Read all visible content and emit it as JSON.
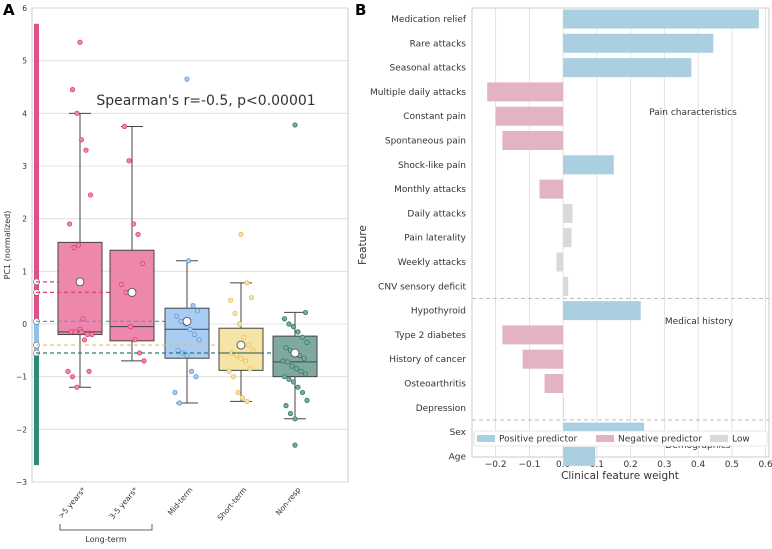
{
  "chart_data": [
    {
      "panel_label": "A",
      "type": "box",
      "ylabel": "PC1 (normalized)",
      "ylim": [
        -3,
        6
      ],
      "yticks": [
        -3,
        -2,
        -1,
        0,
        1,
        2,
        3,
        4,
        5,
        6
      ],
      "annotation": "Spearman's r=-0.5, p<0.00001",
      "group_label": "Long-term",
      "groups": [
        {
          "name": ">5 years*",
          "color": "#ee87ac",
          "stroke": "#d9436f",
          "q1": -0.2,
          "median": -0.15,
          "q3": 1.55,
          "whisker_low": -1.2,
          "whisker_high": 4.0,
          "mean": 0.8,
          "outliers": [
            5.35
          ],
          "points": [
            5.35,
            4.45,
            4.0,
            3.5,
            3.3,
            2.45,
            1.9,
            1.45,
            1.5,
            0.1,
            -0.2,
            -0.2,
            -0.15,
            -0.15,
            -0.1,
            -0.3,
            -0.9,
            -0.9,
            -1.0,
            -1.2,
            -0.15
          ]
        },
        {
          "name": "3-5 years*",
          "color": "#ee87ac",
          "stroke": "#d9436f",
          "q1": -0.32,
          "median": -0.05,
          "q3": 1.4,
          "whisker_low": -0.7,
          "whisker_high": 3.75,
          "mean": 0.6,
          "outliers": [],
          "points": [
            3.75,
            3.1,
            1.9,
            1.7,
            1.15,
            0.75,
            0.6,
            -0.05,
            -0.3,
            -0.55,
            -0.7
          ]
        },
        {
          "name": "Mid-term",
          "color": "#a9cdf2",
          "stroke": "#5b9bd5",
          "q1": -0.65,
          "median": -0.1,
          "q3": 0.3,
          "whisker_low": -1.5,
          "whisker_high": 1.2,
          "mean": 0.05,
          "outliers": [
            4.65
          ],
          "points": [
            4.65,
            1.2,
            0.35,
            0.25,
            0.15,
            0.05,
            0.0,
            -0.1,
            -0.2,
            -0.3,
            -0.5,
            -0.55,
            -0.6,
            -0.9,
            -1.0,
            -1.3,
            -1.5
          ]
        },
        {
          "name": "Short-term",
          "color": "#f6e4a6",
          "stroke": "#e2c15d",
          "q1": -0.88,
          "median": -0.55,
          "q3": -0.08,
          "whisker_low": -1.47,
          "whisker_high": 0.78,
          "mean": -0.4,
          "outliers": [
            1.7
          ],
          "points": [
            1.7,
            0.78,
            0.5,
            0.45,
            0.2,
            0.0,
            -0.25,
            -0.4,
            -0.5,
            -0.55,
            -0.6,
            -0.65,
            -0.7,
            -0.85,
            -0.9,
            -1.0,
            -1.3,
            -1.4,
            -1.47
          ]
        },
        {
          "name": "Non-resp",
          "color": "#7fa89f",
          "stroke": "#2e7d6b",
          "q1": -1.0,
          "median": -0.72,
          "q3": -0.23,
          "whisker_low": -1.8,
          "whisker_high": 0.22,
          "mean": -0.55,
          "outliers": [
            3.78,
            -2.3
          ],
          "points": [
            3.78,
            0.22,
            0.1,
            0.0,
            -0.05,
            -0.15,
            -0.25,
            -0.35,
            -0.45,
            -0.5,
            -0.55,
            -0.6,
            -0.65,
            -0.7,
            -0.72,
            -0.8,
            -0.85,
            -0.9,
            -0.95,
            -1.0,
            -1.05,
            -1.1,
            -1.2,
            -1.3,
            -1.45,
            -1.55,
            -1.7,
            -1.8,
            -2.3
          ]
        }
      ],
      "reference_bar": [
        {
          "from": 5.7,
          "to": 0.0,
          "color": "#e0508a"
        },
        {
          "from": 0.0,
          "to": -0.5,
          "color": "#8ec2ec"
        },
        {
          "from": -0.5,
          "to": -0.6,
          "color": "#f0d47a"
        },
        {
          "from": -0.6,
          "to": -2.68,
          "color": "#2e8b78"
        }
      ],
      "reference_markers": [
        0.8,
        0.6,
        0.05,
        -0.4,
        -0.55
      ]
    },
    {
      "panel_label": "B",
      "type": "bar",
      "orientation": "horizontal",
      "xlabel": "Clinical feature weight",
      "ylabel": "Feature",
      "xlim": [
        -0.27,
        0.61
      ],
      "xticks": [
        -0.2,
        -0.1,
        0.0,
        0.1,
        0.2,
        0.3,
        0.4,
        0.5,
        0.6
      ],
      "categories": [
        "Medication relief",
        "Rare attacks",
        "Seasonal attacks",
        "Multiple daily attacks",
        "Constant pain",
        "Spontaneous pain",
        "Shock-like pain",
        "Monthly attacks",
        "Daily attacks",
        "Pain laterality",
        "Weekly attacks",
        "CNV sensory deficit",
        "Hypothyroid",
        "Type 2 diabetes",
        "History of cancer",
        "Osteoarthritis",
        "Depression",
        "Sex",
        "Age"
      ],
      "values": [
        0.58,
        0.445,
        0.38,
        -0.225,
        -0.2,
        -0.18,
        0.15,
        -0.07,
        0.028,
        0.025,
        -0.02,
        0.015,
        0.23,
        -0.18,
        -0.12,
        -0.055,
        0.003,
        0.24,
        0.095
      ],
      "kinds": [
        "positive",
        "positive",
        "positive",
        "negative",
        "negative",
        "negative",
        "positive",
        "negative",
        "low",
        "low",
        "low",
        "low",
        "positive",
        "negative",
        "negative",
        "negative",
        "low",
        "positive",
        "positive"
      ],
      "sections": [
        {
          "label": "Pain characteristics",
          "start_index": 0,
          "end_index": 11
        },
        {
          "label": "Medical history",
          "start_index": 12,
          "end_index": 16
        },
        {
          "label": "Demographics",
          "start_index": 17,
          "end_index": 18
        }
      ],
      "legend": [
        {
          "label": "Positive predictor",
          "kind": "positive"
        },
        {
          "label": "Negative predictor",
          "kind": "negative"
        },
        {
          "label": "Low",
          "kind": "low"
        }
      ],
      "colors": {
        "positive": "#a9cfe0",
        "negative": "#e3b3c2",
        "low": "#d9d9d9"
      }
    }
  ]
}
